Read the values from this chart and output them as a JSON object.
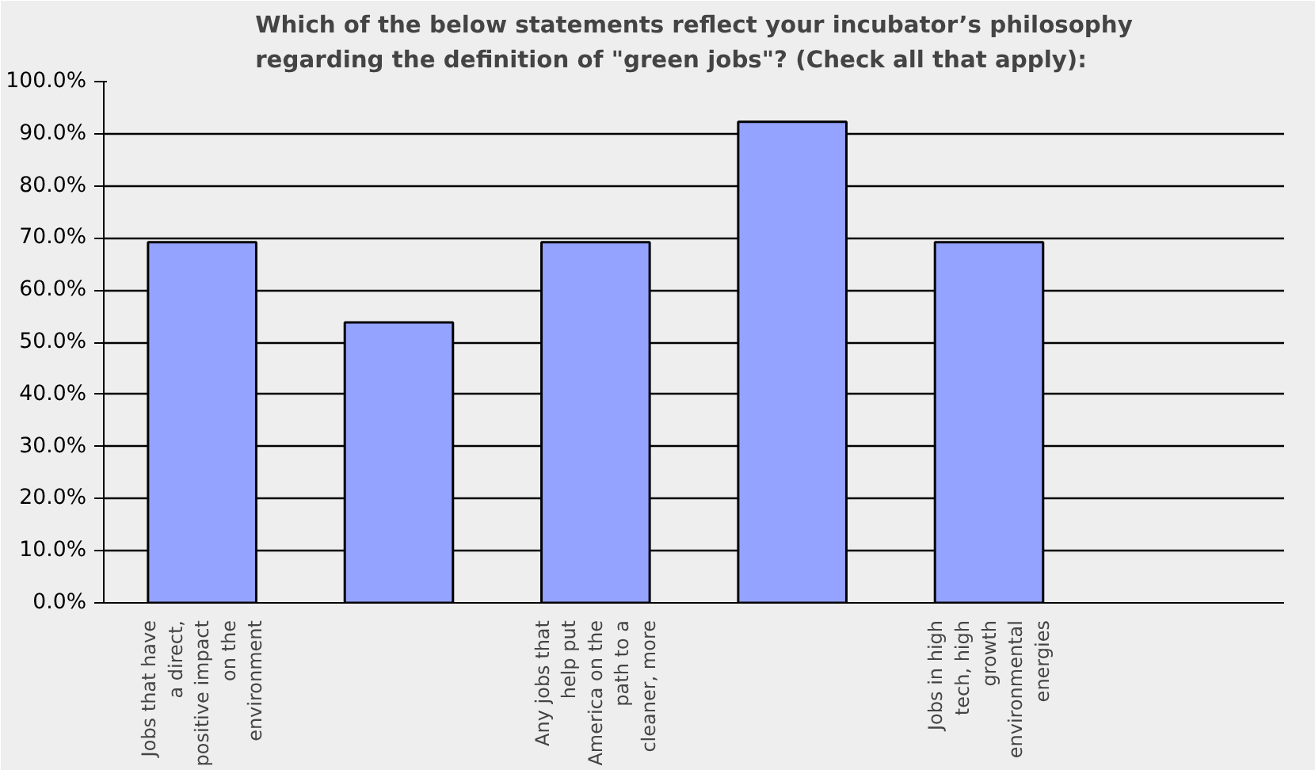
{
  "chart_data": {
    "type": "bar",
    "title": "Which of the below statements reflect your incubator’s philosophy regarding the definition of \"green jobs\"? (Check all that apply):",
    "categories": [
      "Jobs that have a direct, positive impact on the environment",
      null,
      "Any jobs that help put America on the path to a cleaner, more",
      null,
      "Jobs in high tech, high growth environmental energies",
      null
    ],
    "values": [
      69.2,
      53.8,
      69.2,
      92.3,
      69.2,
      null
    ],
    "color": "#94a3ff",
    "ylim": [
      0,
      100
    ],
    "yticks": [
      {
        "value": 0,
        "label": "0.0%"
      },
      {
        "value": 10,
        "label": "10.0%"
      },
      {
        "value": 20,
        "label": "20.0%"
      },
      {
        "value": 30,
        "label": "30.0%"
      },
      {
        "value": 40,
        "label": "40.0%"
      },
      {
        "value": 50,
        "label": "50.0%"
      },
      {
        "value": 60,
        "label": "60.0%"
      },
      {
        "value": 70,
        "label": "70.0%"
      },
      {
        "value": 80,
        "label": "80.0%"
      },
      {
        "value": 90,
        "label": "90.0%"
      },
      {
        "value": 100,
        "label": "100.0%"
      }
    ],
    "grid": "y"
  }
}
